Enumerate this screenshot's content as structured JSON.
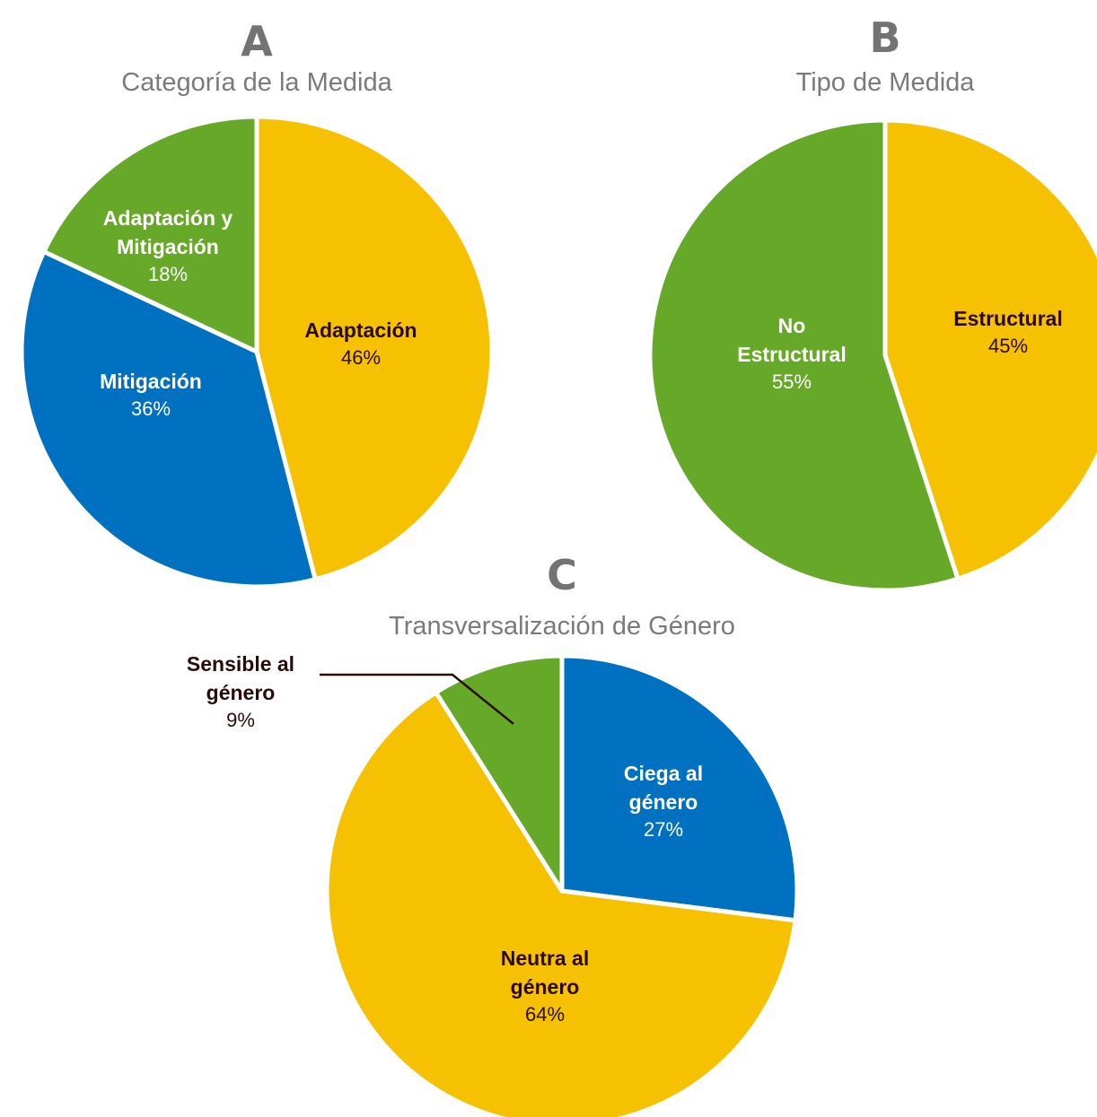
{
  "chart_data": [
    {
      "type": "pie",
      "panel_letter": "A",
      "subtitle": "Categoría de la Medida",
      "slices": [
        {
          "label": [
            "Adaptación"
          ],
          "value": 46,
          "value_text": "46%",
          "color": "#F6C100",
          "label_color": "#2b0a0a",
          "value_color": "#2b0a0a"
        },
        {
          "label": [
            "Mitigación"
          ],
          "value": 36,
          "value_text": "36%",
          "color": "#0070C0",
          "label_color": "#ffffff",
          "value_color": "#ffffff"
        },
        {
          "label": [
            "Adaptación y",
            "Mitigación"
          ],
          "value": 18,
          "value_text": "18%",
          "color": "#66A828",
          "label_color": "#ffffff",
          "value_color": "#ffffff"
        }
      ]
    },
    {
      "type": "pie",
      "panel_letter": "B",
      "subtitle": "Tipo de Medida",
      "slices": [
        {
          "label": [
            "Estructural"
          ],
          "value": 45,
          "value_text": "45%",
          "color": "#F6C100",
          "label_color": "#2b0a0a",
          "value_color": "#2b0a0a"
        },
        {
          "label": [
            "No",
            "Estructural"
          ],
          "value": 55,
          "value_text": "55%",
          "color": "#66A828",
          "label_color": "#ffffff",
          "value_color": "#ffffff"
        }
      ]
    },
    {
      "type": "pie",
      "panel_letter": "C",
      "subtitle": "Transversalización de Género",
      "slices": [
        {
          "label": [
            "Ciega al",
            "género"
          ],
          "value": 27,
          "value_text": "27%",
          "color": "#0070C0",
          "label_color": "#ffffff",
          "value_color": "#ffffff"
        },
        {
          "label": [
            "Neutra al",
            "género"
          ],
          "value": 64,
          "value_text": "64%",
          "color": "#F6C100",
          "label_color": "#2b0a0a",
          "value_color": "#2b0a0a"
        },
        {
          "label": [
            "Sensible al",
            "género"
          ],
          "value": 9,
          "value_text": "9%",
          "color": "#66A828",
          "label_color": "#2b0a0a",
          "value_color": "#2b0a0a",
          "callout": true
        }
      ]
    }
  ]
}
